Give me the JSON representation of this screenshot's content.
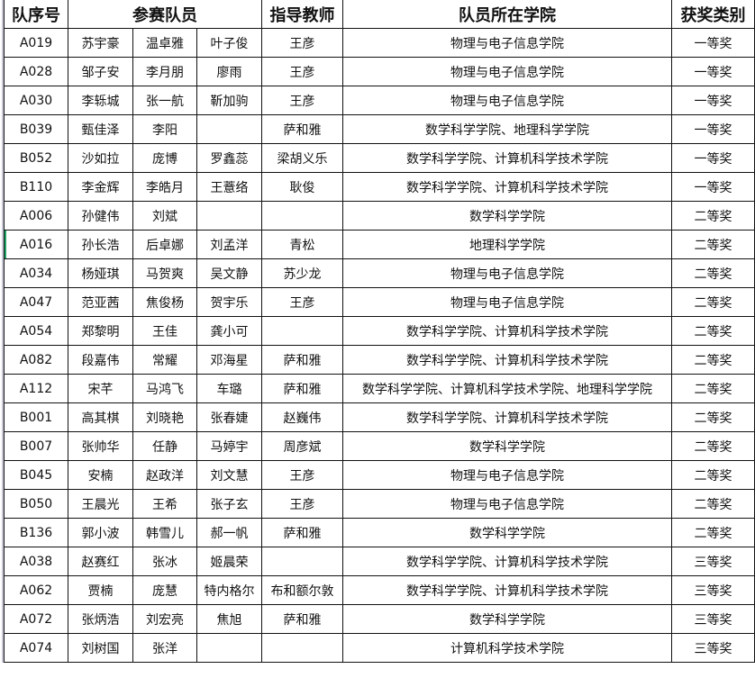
{
  "headers": {
    "id": "队序号",
    "members": "参赛队员",
    "advisor": "指导教师",
    "school": "队员所在学院",
    "award": "获奖类别"
  },
  "rows": [
    [
      "A019",
      "苏宇豪",
      "温卓雅",
      "叶子俊",
      "王彦",
      "物理与电子信息学院",
      "一等奖"
    ],
    [
      "A028",
      "邹子安",
      "李月朋",
      "廖雨",
      "王彦",
      "物理与电子信息学院",
      "一等奖"
    ],
    [
      "A030",
      "李轹城",
      "张一航",
      "靳加驹",
      "王彦",
      "物理与电子信息学院",
      "一等奖"
    ],
    [
      "B039",
      "甄佳泽",
      "李阳",
      "",
      "萨和雅",
      "数学科学学院、地理科学学院",
      "一等奖"
    ],
    [
      "B052",
      "沙如拉",
      "庞博",
      "罗鑫蕊",
      "梁胡义乐",
      "数学科学学院、计算机科学技术学院",
      "一等奖"
    ],
    [
      "B110",
      "李金辉",
      "李皓月",
      "王薏络",
      "耿俊",
      "数学科学学院、计算机科学技术学院",
      "一等奖"
    ],
    [
      "A006",
      "孙健伟",
      "刘斌",
      "",
      "",
      "数学科学学院",
      "二等奖"
    ],
    [
      "A016",
      "孙长浩",
      "后卓娜",
      "刘孟洋",
      "青松",
      "地理科学学院",
      "二等奖"
    ],
    [
      "A034",
      "杨娅琪",
      "马贺爽",
      "吴文静",
      "苏少龙",
      "物理与电子信息学院",
      "二等奖"
    ],
    [
      "A047",
      "范亚茜",
      "焦俊杨",
      "贺宇乐",
      "王彦",
      "物理与电子信息学院",
      "二等奖"
    ],
    [
      "A054",
      "郑黎明",
      "王佳",
      "龚小可",
      "",
      "数学科学学院、计算机科学技术学院",
      "二等奖"
    ],
    [
      "A082",
      "段嘉伟",
      "常耀",
      "邓海星",
      "萨和雅",
      "数学科学学院、计算机科学技术学院",
      "二等奖"
    ],
    [
      "A112",
      "宋芊",
      "马鸿飞",
      "车璐",
      "萨和雅",
      "数学科学学院、计算机科学技术学院、地理科学学院",
      "二等奖"
    ],
    [
      "B001",
      "高其棋",
      "刘晓艳",
      "张春婕",
      "赵巍伟",
      "数学科学学院、计算机科学技术学院",
      "二等奖"
    ],
    [
      "B007",
      "张帅华",
      "任静",
      "马婷宇",
      "周彦斌",
      "数学科学学院",
      "二等奖"
    ],
    [
      "B045",
      "安楠",
      "赵政洋",
      "刘文慧",
      "王彦",
      "物理与电子信息学院",
      "二等奖"
    ],
    [
      "B050",
      "王晨光",
      "王希",
      "张子玄",
      "王彦",
      "物理与电子信息学院",
      "二等奖"
    ],
    [
      "B136",
      "郭小波",
      "韩雪儿",
      "郝一帆",
      "萨和雅",
      "数学科学学院",
      "二等奖"
    ],
    [
      "A038",
      "赵赛红",
      "张冰",
      "姬晨荣",
      "",
      "数学科学学院、计算机科学技术学院",
      "三等奖"
    ],
    [
      "A062",
      "贾楠",
      "庞慧",
      "特内格尔",
      "布和额尔敦",
      "数学科学学院、计算机科学技术学院",
      "三等奖"
    ],
    [
      "A072",
      "张炳浩",
      "刘宏亮",
      "焦旭",
      "萨和雅",
      "数学科学学院",
      "三等奖"
    ],
    [
      "A074",
      "刘树国",
      "张洋",
      "",
      "",
      "计算机科学技术学院",
      "三等奖"
    ]
  ]
}
